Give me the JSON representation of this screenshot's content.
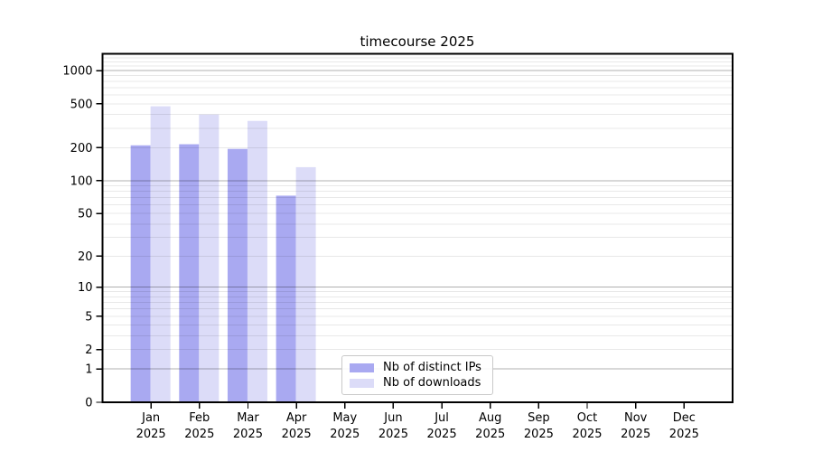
{
  "chart_data": {
    "type": "bar",
    "title": "timecourse 2025",
    "categories": [
      "Jan 2025",
      "Feb 2025",
      "Mar 2025",
      "Apr 2025",
      "May 2025",
      "Jun 2025",
      "Jul 2025",
      "Aug 2025",
      "Sep 2025",
      "Oct 2025",
      "Nov 2025",
      "Dec 2025"
    ],
    "series": [
      {
        "name": "Nb of distinct IPs",
        "color": "#a9a9f1",
        "values": [
          210,
          215,
          195,
          73,
          null,
          null,
          null,
          null,
          null,
          null,
          null,
          null
        ]
      },
      {
        "name": "Nb of downloads",
        "color": "#dcdcf8",
        "values": [
          475,
          400,
          350,
          133,
          null,
          null,
          null,
          null,
          null,
          null,
          null,
          null
        ]
      }
    ],
    "y_ticks": [
      1000,
      500,
      200,
      100,
      50,
      20,
      10,
      5,
      2,
      1,
      0
    ],
    "y_scale": "log1p",
    "ylim": [
      0,
      1420
    ],
    "xlabel": "",
    "ylabel": "",
    "grid": {
      "horizontal": true,
      "vertical": false,
      "major_gridline_values": [
        1,
        10,
        100,
        1000
      ],
      "minor_gridlines": "2-9 per decade plus 1100-1300"
    },
    "legend_position": "lower center"
  }
}
